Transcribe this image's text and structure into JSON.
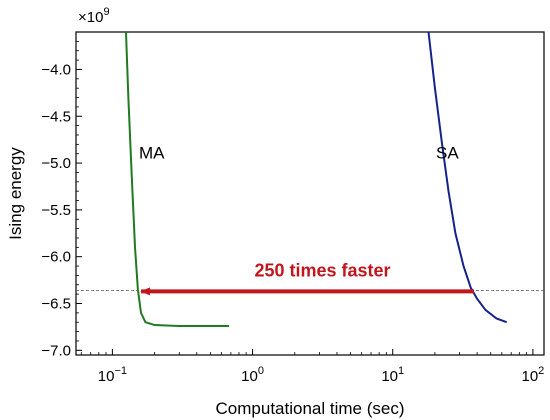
{
  "chart_data": {
    "type": "line",
    "xlabel": "Computational time (sec)",
    "ylabel": "Ising energy",
    "xscale": "log",
    "xlim": [
      0.055,
      120
    ],
    "ylim": [
      -7.05,
      -3.6
    ],
    "y_multiplier_label": "×10",
    "y_multiplier_exponent": "9",
    "y_ticks": [
      {
        "value": -4.0,
        "label": "−4.0"
      },
      {
        "value": -4.5,
        "label": "−4.5"
      },
      {
        "value": -5.0,
        "label": "−5.0"
      },
      {
        "value": -5.5,
        "label": "−5.5"
      },
      {
        "value": -6.0,
        "label": "−6.0"
      },
      {
        "value": -6.5,
        "label": "−6.5"
      },
      {
        "value": -7.0,
        "label": "−7.0"
      }
    ],
    "x_ticks": [
      {
        "value": 0.1,
        "base": "10",
        "exp": "−1"
      },
      {
        "value": 1,
        "base": "10",
        "exp": "0"
      },
      {
        "value": 10,
        "base": "10",
        "exp": "1"
      },
      {
        "value": 100,
        "base": "10",
        "exp": "2"
      }
    ],
    "grid": false,
    "series": [
      {
        "name": "MA",
        "color": "#1f7a22",
        "points": [
          [
            0.125,
            -3.6
          ],
          [
            0.13,
            -4.3
          ],
          [
            0.138,
            -5.2
          ],
          [
            0.145,
            -5.9
          ],
          [
            0.152,
            -6.35
          ],
          [
            0.16,
            -6.6
          ],
          [
            0.172,
            -6.7
          ],
          [
            0.2,
            -6.73
          ],
          [
            0.3,
            -6.74
          ],
          [
            0.68,
            -6.74
          ]
        ]
      },
      {
        "name": "SA",
        "color": "#14238a",
        "points": [
          [
            18,
            -3.6
          ],
          [
            20,
            -4.2
          ],
          [
            22.5,
            -4.8
          ],
          [
            25,
            -5.3
          ],
          [
            28,
            -5.75
          ],
          [
            32,
            -6.1
          ],
          [
            36,
            -6.33
          ],
          [
            40,
            -6.45
          ],
          [
            46,
            -6.57
          ],
          [
            55,
            -6.66
          ],
          [
            65,
            -6.7
          ]
        ]
      }
    ],
    "reference_line": {
      "y": -6.36,
      "color": "#555555"
    },
    "annotation": {
      "text": "250 times faster",
      "color": "#c0171e",
      "arrow_from_x": 38,
      "arrow_to_x": 0.155,
      "arrow_y": -6.36
    }
  }
}
